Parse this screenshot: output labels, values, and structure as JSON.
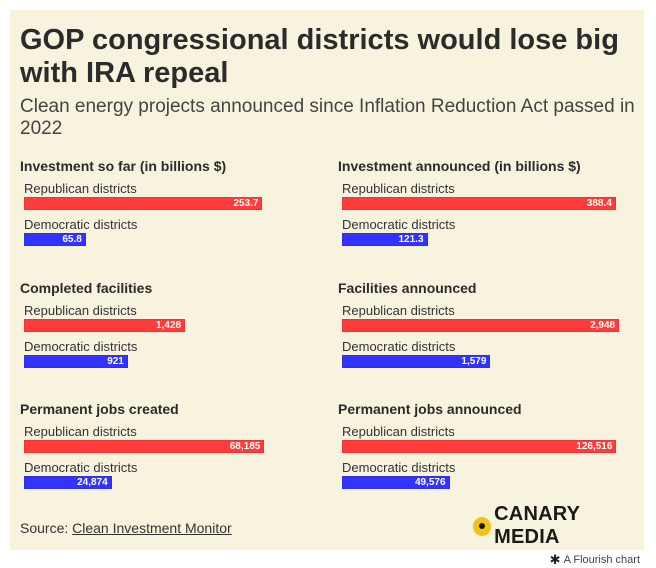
{
  "title": "GOP congressional districts would lose big with IRA repeal",
  "subtitle": "Clean energy projects announced since Inflation Reduction Act passed in 2022",
  "source_prefix": "Source: ",
  "source_link": "Clean Investment Monitor",
  "logo_text": "CANARY MEDIA",
  "credit": "A Flourish chart",
  "colors": {
    "republican": "#ff3b3b",
    "democratic": "#3333ff",
    "background": "#f8f3df"
  },
  "chart_data": [
    {
      "type": "bar",
      "title": "Investment so far (in billions $)",
      "categories": [
        "Republican districts",
        "Democratic districts"
      ],
      "values": [
        253.7,
        65.8
      ],
      "labels": [
        "253.7",
        "65.8"
      ],
      "xlim": [
        0,
        300
      ]
    },
    {
      "type": "bar",
      "title": "Investment announced (in billions $)",
      "categories": [
        "Republican districts",
        "Democratic districts"
      ],
      "values": [
        388.4,
        121.3
      ],
      "labels": [
        "388.4",
        "121.3"
      ],
      "xlim": [
        0,
        400
      ]
    },
    {
      "type": "bar",
      "title": "Completed facilities",
      "categories": [
        "Republican districts",
        "Democratic districts"
      ],
      "values": [
        1428,
        921
      ],
      "labels": [
        "1,428",
        "921"
      ],
      "xlim": [
        0,
        2500
      ]
    },
    {
      "type": "bar",
      "title": "Facilities announced",
      "categories": [
        "Republican districts",
        "Democratic districts"
      ],
      "values": [
        2948,
        1579
      ],
      "labels": [
        "2,948",
        "1,579"
      ],
      "xlim": [
        0,
        3000
      ]
    },
    {
      "type": "bar",
      "title": "Permanent jobs created",
      "categories": [
        "Republican districts",
        "Democratic districts"
      ],
      "values": [
        68185,
        24874
      ],
      "labels": [
        "68,185",
        "24,874"
      ],
      "xlim": [
        0,
        80000
      ]
    },
    {
      "type": "bar",
      "title": "Permanent jobs announced",
      "categories": [
        "Republican districts",
        "Democratic districts"
      ],
      "values": [
        126516,
        49576
      ],
      "labels": [
        "126,516",
        "49,576"
      ],
      "xlim": [
        0,
        130000
      ]
    }
  ]
}
